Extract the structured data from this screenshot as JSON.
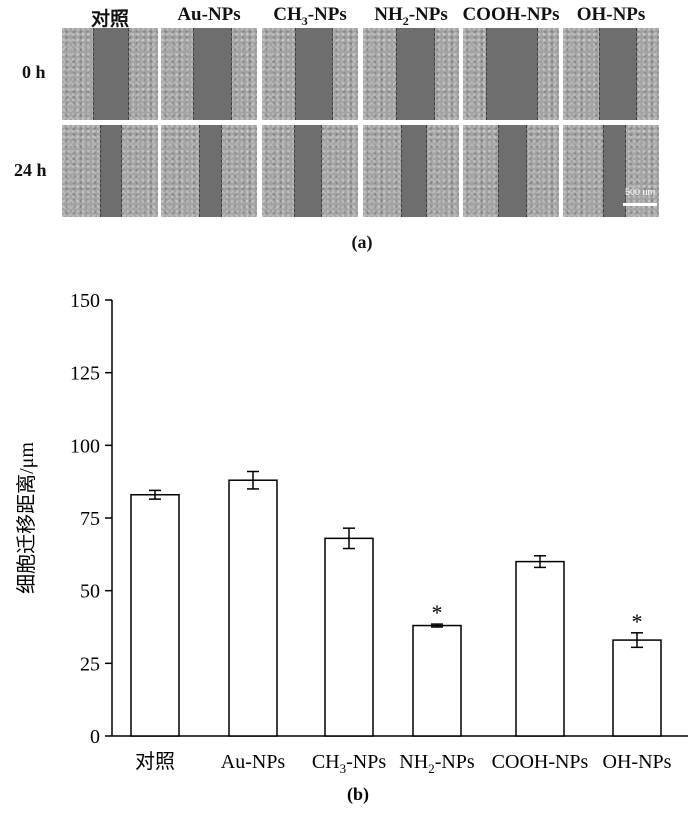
{
  "panel_a": {
    "columns": [
      "对照",
      "Au-NPs",
      "CH3-NPs",
      "NH2-NPs",
      "COOH-NPs",
      "OH-NPs"
    ],
    "column_label_parts": [
      {
        "text": "对照",
        "sub": "",
        "rest": ""
      },
      {
        "text": "Au-NPs",
        "sub": "",
        "rest": ""
      },
      {
        "text": "CH",
        "sub": "3",
        "rest": "-NPs"
      },
      {
        "text": "NH",
        "sub": "2",
        "rest": "-NPs"
      },
      {
        "text": "COOH-NPs",
        "sub": "",
        "rest": ""
      },
      {
        "text": "OH-NPs",
        "sub": "",
        "rest": ""
      }
    ],
    "rows": [
      "0 h",
      "24 h"
    ],
    "scale_bar_label": "500 um",
    "caption": "(a)"
  },
  "panel_b": {
    "caption": "(b)"
  },
  "chart_data": {
    "type": "bar",
    "categories": [
      "对照",
      "Au-NPs",
      "CH3-NPs",
      "NH2-NPs",
      "COOH-NPs",
      "OH-NPs"
    ],
    "category_label_parts": [
      {
        "text": "对照",
        "sub": "",
        "rest": ""
      },
      {
        "text": "Au-NPs",
        "sub": "",
        "rest": ""
      },
      {
        "text": "CH",
        "sub": "3",
        "rest": "-NPs"
      },
      {
        "text": "NH",
        "sub": "2",
        "rest": "-NPs"
      },
      {
        "text": "COOH-NPs",
        "sub": "",
        "rest": ""
      },
      {
        "text": "OH-NPs",
        "sub": "",
        "rest": ""
      }
    ],
    "values": [
      83,
      88,
      68,
      38,
      60,
      33
    ],
    "errors": [
      1.5,
      3,
      3.5,
      0.5,
      2,
      2.5
    ],
    "significance": [
      "",
      "",
      "",
      "*",
      "",
      "*"
    ],
    "ylabel": "细胞迁移距离/μm",
    "xlabel": "",
    "ylim": [
      0,
      150
    ],
    "yticks": [
      0,
      25,
      50,
      75,
      100,
      125,
      150
    ],
    "grid": false,
    "bar_fill": "#ffffff",
    "bar_stroke": "#000000"
  }
}
